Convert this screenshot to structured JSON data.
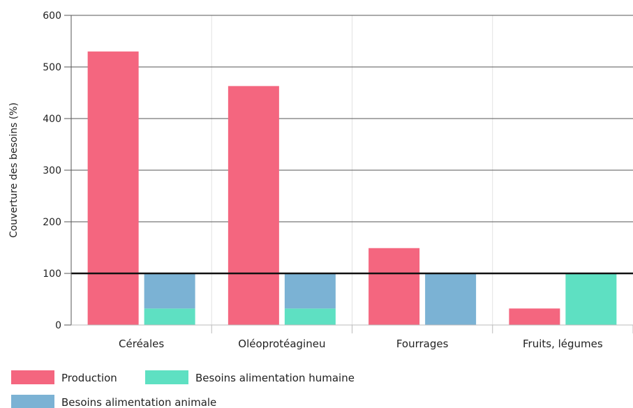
{
  "chart_data": {
    "type": "bar",
    "title": "",
    "xlabel": "",
    "ylabel": "Couverture des besoins (%)",
    "ylim": [
      0,
      600
    ],
    "yticks": [
      0,
      100,
      200,
      300,
      400,
      500,
      600
    ],
    "reference_line": 100,
    "categories": [
      "Céréales",
      "Oléoprotéagineu",
      "Fourrages",
      "Fruits, légumes"
    ],
    "groups": [
      {
        "category": "Céréales",
        "production": 530,
        "needs": [
          {
            "series": "Besoins alimentation humaine",
            "value": 32
          },
          {
            "series": "Besoins alimentation animale",
            "value": 68
          }
        ]
      },
      {
        "category": "Oléoprotéagineu",
        "production": 463,
        "needs": [
          {
            "series": "Besoins alimentation humaine",
            "value": 32
          },
          {
            "series": "Besoins alimentation animale",
            "value": 68
          }
        ]
      },
      {
        "category": "Fourrages",
        "production": 149,
        "needs": [
          {
            "series": "Besoins alimentation animale",
            "value": 100
          }
        ]
      },
      {
        "category": "Fruits, légumes",
        "production": 32,
        "needs": [
          {
            "series": "Besoins alimentation humaine",
            "value": 100
          }
        ]
      }
    ],
    "series": [
      {
        "name": "Production",
        "color": "#f4667f"
      },
      {
        "name": "Besoins alimentation humaine",
        "color": "#5ee0c2"
      },
      {
        "name": "Besoins alimentation animale",
        "color": "#7bb2d4"
      }
    ],
    "grid": true,
    "legend": "bottom-left"
  }
}
